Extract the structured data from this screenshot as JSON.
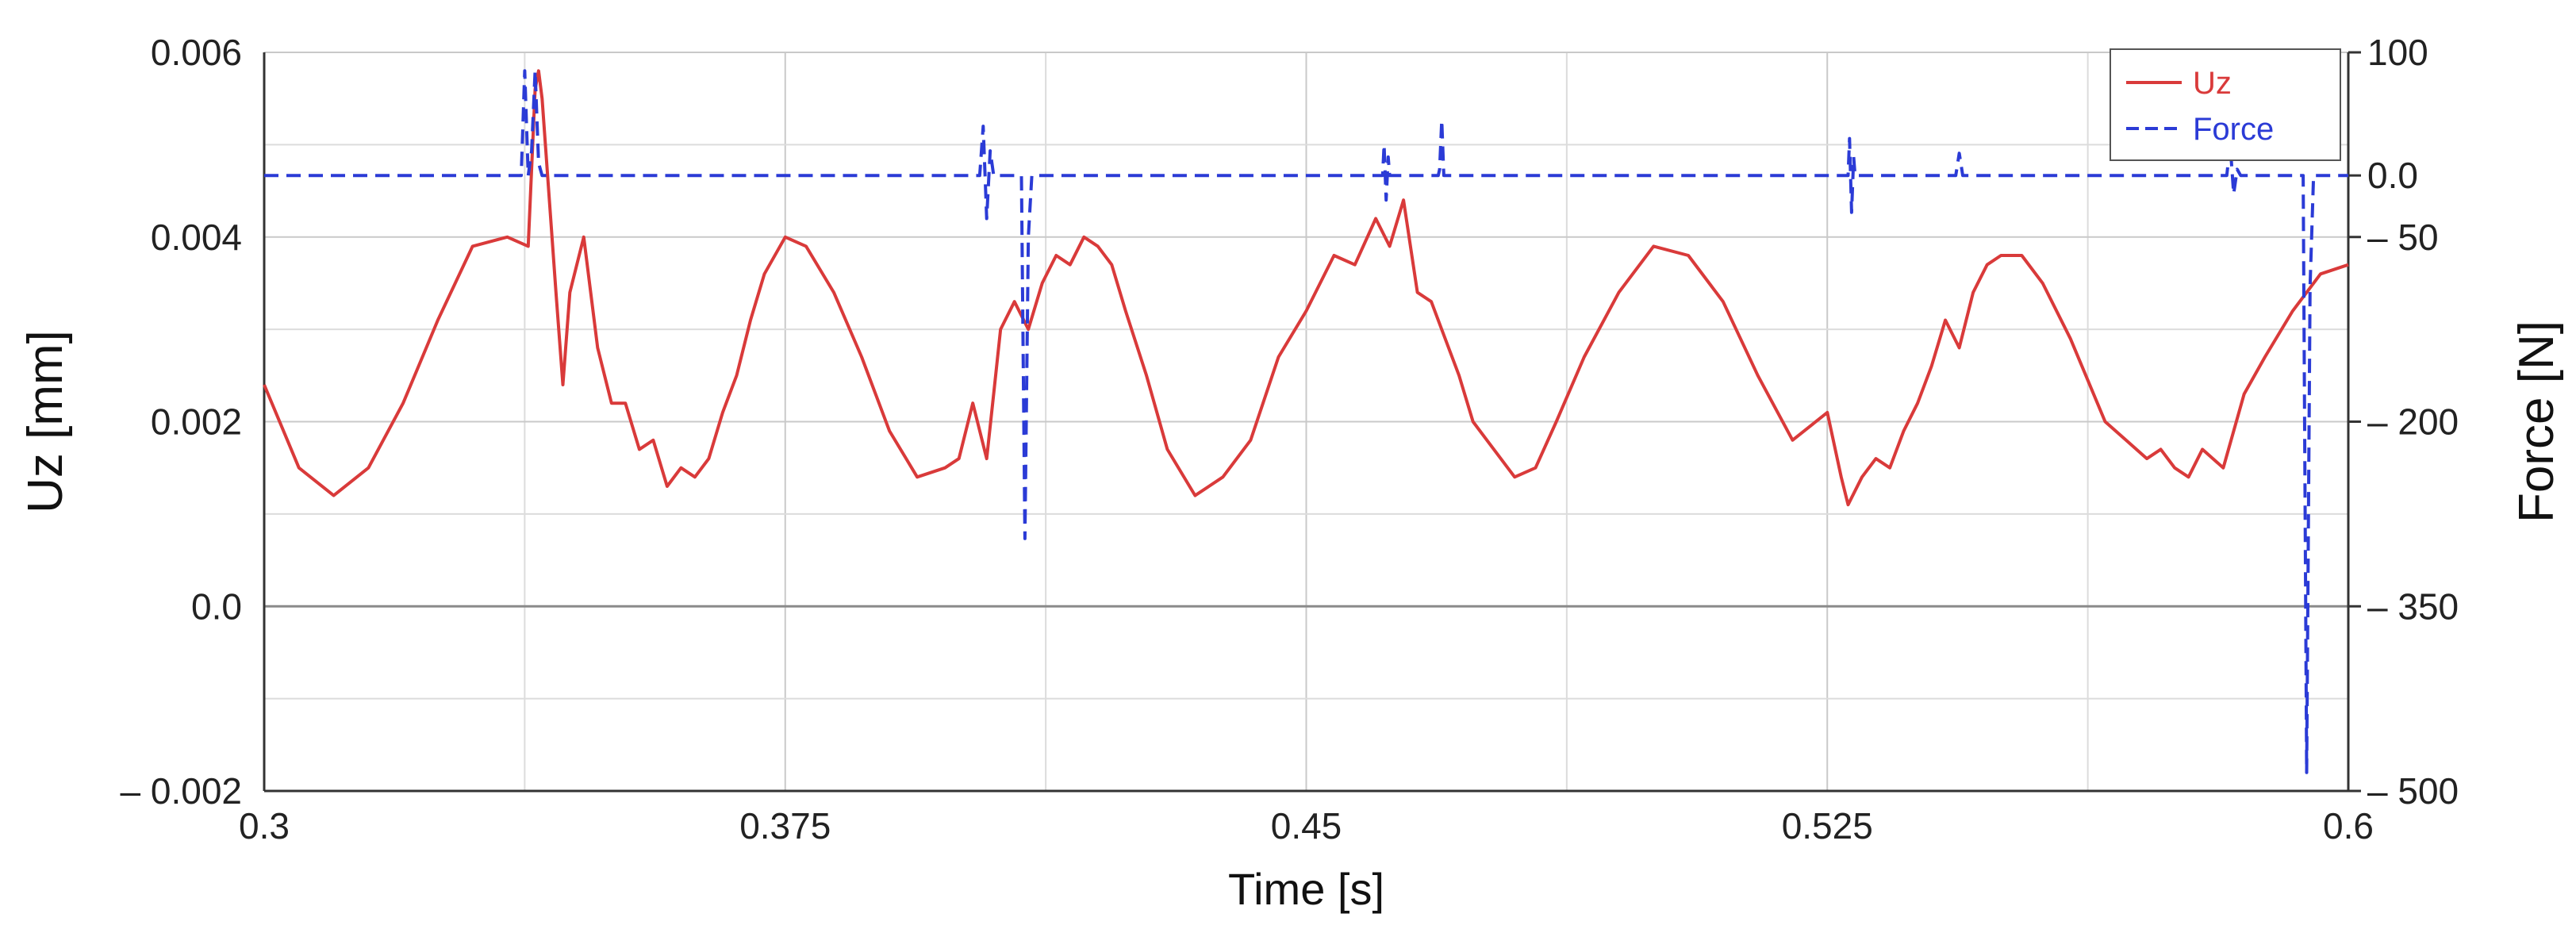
{
  "chart_data": {
    "type": "line",
    "xlabel": "Time [s]",
    "ylabel_left": "Uz [mm]",
    "ylabel_right": "Force [N]",
    "xlim": [
      0.3,
      0.6
    ],
    "ylim_left": [
      -0.002,
      0.006
    ],
    "ylim_right": [
      -500,
      100
    ],
    "right_axis_inverted": true,
    "grid": true,
    "legend_position": "top-right",
    "x_ticks": [
      {
        "value": 0.3,
        "label": "0.3"
      },
      {
        "value": 0.375,
        "label": "0.375"
      },
      {
        "value": 0.45,
        "label": "0.45"
      },
      {
        "value": 0.525,
        "label": "0.525"
      },
      {
        "value": 0.6,
        "label": "0.6"
      }
    ],
    "x_minor_grid": [
      0.3375,
      0.4125,
      0.4875,
      0.5625
    ],
    "y_left_ticks": [
      {
        "value": 0.006,
        "label": "0.006"
      },
      {
        "value": 0.004,
        "label": "0.004"
      },
      {
        "value": 0.002,
        "label": "0.002"
      },
      {
        "value": 0.0,
        "label": "0.0"
      },
      {
        "value": -0.002,
        "label": "– 0.002"
      }
    ],
    "y_left_minor_grid": [
      0.005,
      0.003,
      0.001,
      -0.001
    ],
    "y_right_ticks": [
      {
        "value": 100,
        "label": "100"
      },
      {
        "value": 0,
        "label": "0.0"
      },
      {
        "value": -50,
        "label": "– 50"
      },
      {
        "value": -200,
        "label": "– 200"
      },
      {
        "value": -350,
        "label": "– 350"
      },
      {
        "value": -500,
        "label": "– 500"
      }
    ],
    "colors": {
      "uz": "#d93a3a",
      "force": "#2b3bd6"
    },
    "series": [
      {
        "name": "Uz",
        "axis": "left",
        "style": "solid",
        "x": [
          0.3,
          0.305,
          0.31,
          0.315,
          0.32,
          0.325,
          0.33,
          0.335,
          0.338,
          0.339,
          0.3395,
          0.34,
          0.342,
          0.343,
          0.344,
          0.346,
          0.348,
          0.35,
          0.352,
          0.354,
          0.356,
          0.358,
          0.36,
          0.362,
          0.364,
          0.366,
          0.368,
          0.37,
          0.372,
          0.375,
          0.378,
          0.382,
          0.386,
          0.39,
          0.394,
          0.398,
          0.4,
          0.402,
          0.404,
          0.405,
          0.406,
          0.408,
          0.41,
          0.412,
          0.414,
          0.416,
          0.418,
          0.42,
          0.422,
          0.424,
          0.427,
          0.43,
          0.434,
          0.438,
          0.442,
          0.446,
          0.45,
          0.454,
          0.457,
          0.46,
          0.462,
          0.464,
          0.466,
          0.468,
          0.47,
          0.472,
          0.474,
          0.476,
          0.478,
          0.48,
          0.483,
          0.486,
          0.49,
          0.495,
          0.5,
          0.505,
          0.51,
          0.515,
          0.52,
          0.525,
          0.527,
          0.528,
          0.53,
          0.532,
          0.534,
          0.536,
          0.538,
          0.54,
          0.542,
          0.544,
          0.546,
          0.548,
          0.55,
          0.553,
          0.556,
          0.56,
          0.565,
          0.568,
          0.571,
          0.573,
          0.575,
          0.577,
          0.579,
          0.582,
          0.585,
          0.588,
          0.592,
          0.596,
          0.6
        ],
        "y": [
          0.0024,
          0.0015,
          0.0012,
          0.0015,
          0.0022,
          0.0031,
          0.0039,
          0.004,
          0.0039,
          0.0056,
          0.0058,
          0.0055,
          0.0034,
          0.0024,
          0.0034,
          0.004,
          0.0028,
          0.0022,
          0.0022,
          0.0017,
          0.0018,
          0.0013,
          0.0015,
          0.0014,
          0.0016,
          0.0021,
          0.0025,
          0.0031,
          0.0036,
          0.004,
          0.0039,
          0.0034,
          0.0027,
          0.0019,
          0.0014,
          0.0015,
          0.0016,
          0.0022,
          0.0016,
          0.0023,
          0.003,
          0.0033,
          0.003,
          0.0035,
          0.0038,
          0.0037,
          0.004,
          0.0039,
          0.0037,
          0.0032,
          0.0025,
          0.0017,
          0.0012,
          0.0014,
          0.0018,
          0.0027,
          0.0032,
          0.0038,
          0.0037,
          0.0042,
          0.0039,
          0.0044,
          0.0034,
          0.0033,
          0.0029,
          0.0025,
          0.002,
          0.0018,
          0.0016,
          0.0014,
          0.0015,
          0.002,
          0.0027,
          0.0034,
          0.0039,
          0.0038,
          0.0033,
          0.0025,
          0.0018,
          0.0021,
          0.0014,
          0.0011,
          0.0014,
          0.0016,
          0.0015,
          0.0019,
          0.0022,
          0.0026,
          0.0031,
          0.0028,
          0.0034,
          0.0037,
          0.0038,
          0.0038,
          0.0035,
          0.0029,
          0.002,
          0.0018,
          0.0016,
          0.0017,
          0.0015,
          0.0014,
          0.0017,
          0.0015,
          0.0023,
          0.0027,
          0.0032,
          0.0036,
          0.0037
        ]
      },
      {
        "name": "Force",
        "axis": "right",
        "style": "dashed",
        "x": [
          0.3,
          0.337,
          0.3375,
          0.338,
          0.3385,
          0.339,
          0.3395,
          0.34,
          0.403,
          0.4035,
          0.404,
          0.4045,
          0.405,
          0.4055,
          0.409,
          0.4095,
          0.41,
          0.4105,
          0.411,
          0.461,
          0.4612,
          0.4615,
          0.4618,
          0.462,
          0.469,
          0.4692,
          0.4695,
          0.4698,
          0.47,
          0.528,
          0.5282,
          0.5285,
          0.5288,
          0.529,
          0.5435,
          0.544,
          0.5445,
          0.5825,
          0.583,
          0.5835,
          0.584,
          0.5845,
          0.5935,
          0.594,
          0.5945,
          0.595,
          0.6
        ],
        "y": [
          0,
          0,
          85,
          0,
          20,
          85,
          10,
          0,
          0,
          40,
          -35,
          20,
          0,
          0,
          0,
          -295,
          -50,
          0,
          0,
          0,
          25,
          -20,
          15,
          0,
          0,
          5,
          45,
          0,
          0,
          0,
          30,
          -30,
          15,
          0,
          0,
          18,
          0,
          0,
          25,
          -15,
          5,
          0,
          0,
          -485,
          -90,
          0,
          0
        ]
      }
    ]
  }
}
